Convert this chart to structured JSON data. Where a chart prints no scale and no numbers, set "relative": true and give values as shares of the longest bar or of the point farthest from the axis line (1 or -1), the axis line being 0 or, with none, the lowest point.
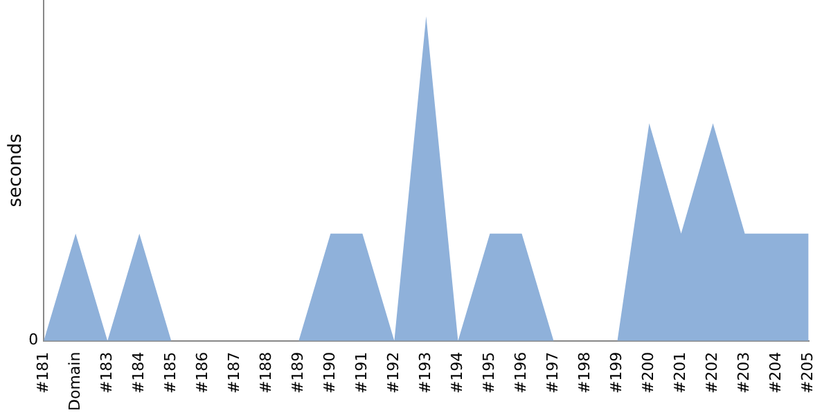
{
  "chart_data": {
    "type": "area",
    "relative": true,
    "ylabel": "seconds",
    "annotations": [
      "0"
    ],
    "categories": [
      "#181",
      "Domain",
      "#183",
      "#184",
      "#185",
      "#186",
      "#187",
      "#188",
      "#189",
      "#190",
      "#191",
      "#192",
      "#193",
      "#194",
      "#195",
      "#196",
      "#197",
      "#198",
      "#199",
      "#200",
      "#201",
      "#202",
      "#203",
      "#204",
      "#205"
    ],
    "series": [
      {
        "color": "#8fb1da",
        "values": [
          0,
          0.33,
          0,
          0.33,
          0,
          0,
          0,
          0,
          0,
          0.33,
          0.33,
          0,
          1,
          0,
          0.33,
          0.33,
          0,
          0,
          0,
          0.67,
          0.33,
          0.67,
          0.33,
          0.33,
          0.33
        ]
      }
    ],
    "grid": false,
    "legend": false
  }
}
